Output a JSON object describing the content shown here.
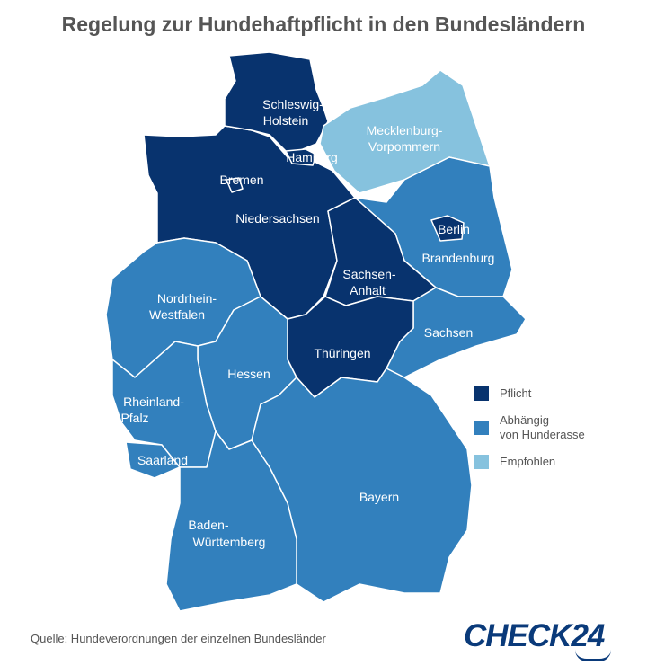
{
  "title": "Regelung zur Hundehaftpflicht in den Bundesländern",
  "colors": {
    "pflicht": "#08336e",
    "abhaengig": "#3280bd",
    "empfohlen": "#86c2de"
  },
  "states": [
    {
      "name": "Schleswig-Holstein",
      "label1": "Schleswig-",
      "label2": "Holstein",
      "category": "pflicht"
    },
    {
      "name": "Hamburg",
      "label1": "Hamburg",
      "category": "pflicht"
    },
    {
      "name": "Mecklenburg-Vorpommern",
      "label1": "Mecklenburg-",
      "label2": "Vorpommern",
      "category": "empfohlen"
    },
    {
      "name": "Bremen",
      "label1": "Bremen",
      "category": "pflicht"
    },
    {
      "name": "Niedersachsen",
      "label1": "Niedersachsen",
      "category": "pflicht"
    },
    {
      "name": "Berlin",
      "label1": "Berlin",
      "category": "pflicht"
    },
    {
      "name": "Brandenburg",
      "label1": "Brandenburg",
      "category": "abhaengig"
    },
    {
      "name": "Sachsen-Anhalt",
      "label1": "Sachsen-",
      "label2": "Anhalt",
      "category": "pflicht"
    },
    {
      "name": "Nordrhein-Westfalen",
      "label1": "Nordrhein-",
      "label2": "Westfalen",
      "category": "abhaengig"
    },
    {
      "name": "Sachsen",
      "label1": "Sachsen",
      "category": "abhaengig"
    },
    {
      "name": "Thüringen",
      "label1": "Thüringen",
      "category": "pflicht"
    },
    {
      "name": "Hessen",
      "label1": "Hessen",
      "category": "abhaengig"
    },
    {
      "name": "Rheinland-Pfalz",
      "label1": "Rheinland-",
      "label2": "Pfalz",
      "category": "abhaengig"
    },
    {
      "name": "Saarland",
      "label1": "Saarland",
      "category": "abhaengig"
    },
    {
      "name": "Bayern",
      "label1": "Bayern",
      "category": "abhaengig"
    },
    {
      "name": "Baden-Württemberg",
      "label1": "Baden-",
      "label2": "Württemberg",
      "category": "abhaengig"
    }
  ],
  "legend": [
    {
      "label": "Pflicht",
      "color": "#08336e"
    },
    {
      "label1": "Abhängig",
      "label2": "von Hunderasse",
      "color": "#3280bd"
    },
    {
      "label": "Empfohlen",
      "color": "#86c2de"
    }
  ],
  "source": "Quelle: Hundeverordnungen der einzelnen Bundesländer",
  "logo": "CHECK24"
}
